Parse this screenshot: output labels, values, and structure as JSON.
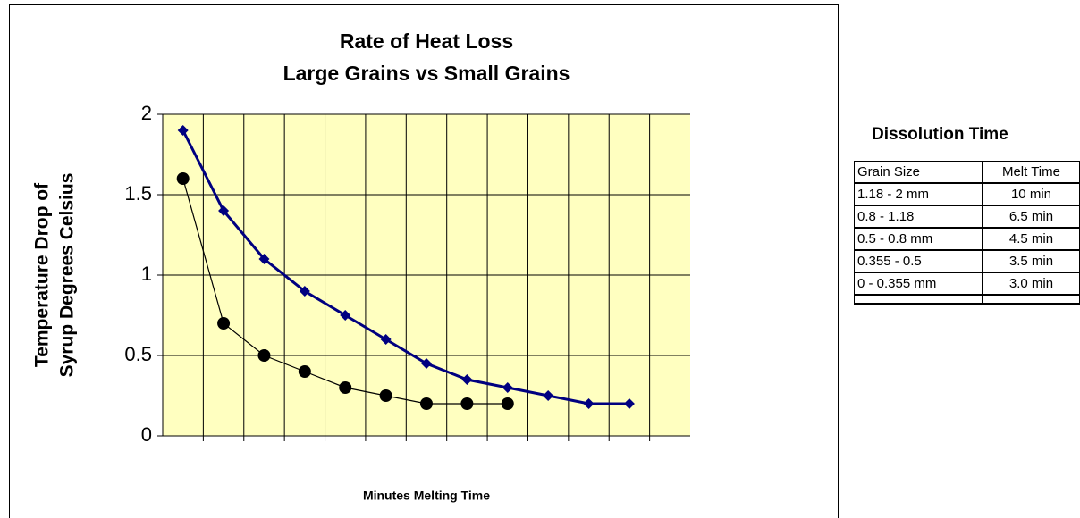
{
  "chart_data": {
    "type": "line",
    "title": [
      "Rate of Heat Loss",
      "Large Grains vs Small Grains"
    ],
    "ylabel": [
      "Temperature Drop of",
      "Syrup Degrees Celsius"
    ],
    "xlabel": "Minutes Melting Time",
    "categories": [
      null,
      null,
      null,
      null,
      null,
      null,
      null,
      null,
      null,
      null,
      null,
      null,
      null
    ],
    "series": [
      {
        "color": "#000080",
        "marker": "diamond",
        "values": [
          1.9,
          1.4,
          1.1,
          0.9,
          0.75,
          0.6,
          0.45,
          0.35,
          0.3,
          0.25,
          0.2,
          0.2,
          null
        ]
      },
      {
        "color": "#000000",
        "marker": "circle",
        "values": [
          1.6,
          0.7,
          0.5,
          0.4,
          0.3,
          0.25,
          0.2,
          0.2,
          0.2,
          null,
          null,
          null,
          null
        ]
      }
    ],
    "ylim": [
      0,
      2
    ],
    "yticks": [
      0,
      0.5,
      1,
      1.5,
      2
    ],
    "grid": true
  },
  "table": {
    "title": "Dissolution Time",
    "header": [
      "Grain Size",
      "Melt Time"
    ],
    "rows": [
      [
        "1.18 - 2 mm",
        "10 min"
      ],
      [
        "0.8 - 1.18",
        "6.5 min"
      ],
      [
        "0.5 - 0.8 mm",
        "4.5 min"
      ],
      [
        "0.355 - 0.5",
        "3.5 min"
      ],
      [
        "0 - 0.355 mm",
        "3.0 min"
      ]
    ]
  }
}
